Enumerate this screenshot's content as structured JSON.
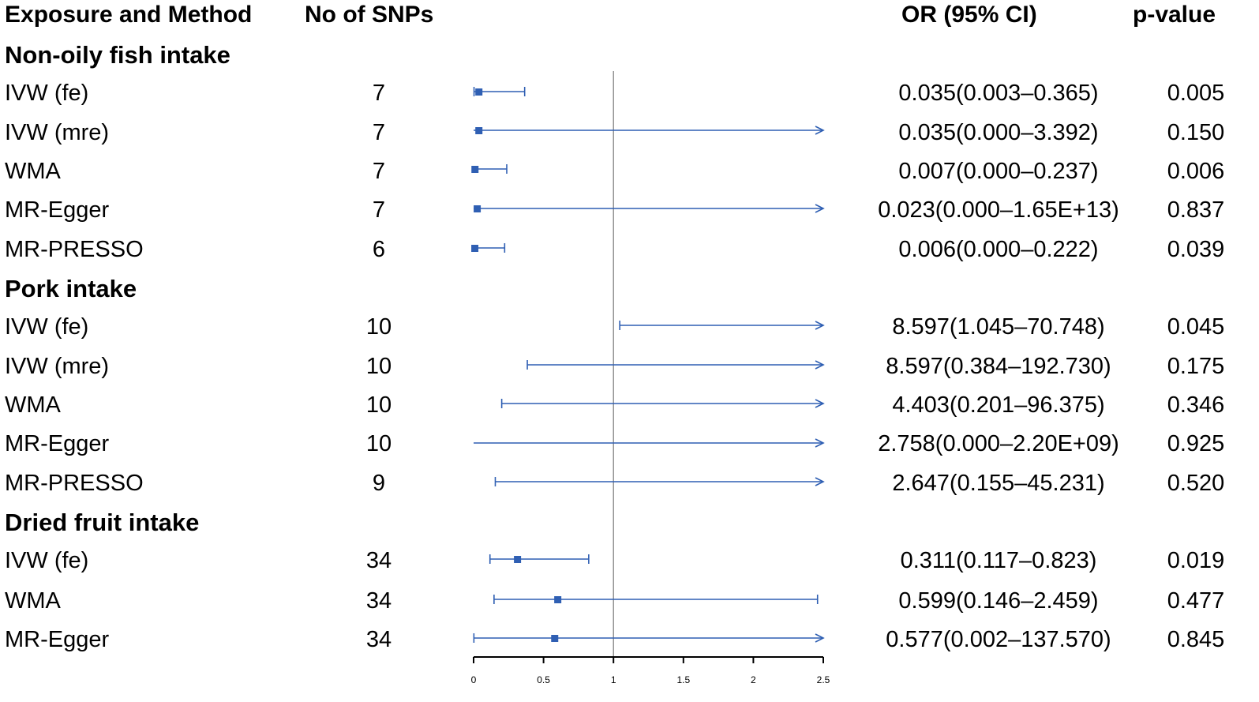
{
  "headers": {
    "exposure": "Exposure and Method",
    "snps": "No of SNPs",
    "or": "OR (95% CI)",
    "pvalue": "p-value"
  },
  "groups": [
    {
      "name": "Non-oily fish intake",
      "rows": [
        {
          "method": "IVW (fe)",
          "snps": "7",
          "or_ci": "0.035(0.003–0.365)",
          "p": "0.005"
        },
        {
          "method": "IVW (mre)",
          "snps": "7",
          "or_ci": "0.035(0.000–3.392)",
          "p": "0.150"
        },
        {
          "method": "WMA",
          "snps": "7",
          "or_ci": "0.007(0.000–0.237)",
          "p": "0.006"
        },
        {
          "method": "MR-Egger",
          "snps": "7",
          "or_ci": "0.023(0.000–1.65E+13)",
          "p": "0.837"
        },
        {
          "method": "MR-PRESSO",
          "snps": "6",
          "or_ci": "0.006(0.000–0.222)",
          "p": "0.039"
        }
      ]
    },
    {
      "name": "Pork intake",
      "rows": [
        {
          "method": "IVW (fe)",
          "snps": "10",
          "or_ci": "8.597(1.045–70.748)",
          "p": "0.045"
        },
        {
          "method": "IVW (mre)",
          "snps": "10",
          "or_ci": "8.597(0.384–192.730)",
          "p": "0.175"
        },
        {
          "method": "WMA",
          "snps": "10",
          "or_ci": "4.403(0.201–96.375)",
          "p": "0.346"
        },
        {
          "method": "MR-Egger",
          "snps": "10",
          "or_ci": "2.758(0.000–2.20E+09)",
          "p": "0.925"
        },
        {
          "method": "MR-PRESSO",
          "snps": "9",
          "or_ci": "2.647(0.155–45.231)",
          "p": "0.520"
        }
      ]
    },
    {
      "name": "Dried fruit intake",
      "rows": [
        {
          "method": "IVW (fe)",
          "snps": "34",
          "or_ci": "0.311(0.117–0.823)",
          "p": "0.019"
        },
        {
          "method": "WMA",
          "snps": "34",
          "or_ci": "0.599(0.146–2.459)",
          "p": "0.477"
        },
        {
          "method": "MR-Egger",
          "snps": "34",
          "or_ci": "0.577(0.002–137.570)",
          "p": "0.845"
        }
      ]
    }
  ],
  "chart_data": {
    "type": "forest",
    "title": "",
    "xlabel": "",
    "ylabel": "",
    "xlim": [
      0,
      2.5
    ],
    "x_ticks": [
      "0",
      "0.5",
      "1",
      "1.5",
      "2",
      "2.5"
    ],
    "reference_line": 1,
    "series": [
      {
        "group": "Non-oily fish intake",
        "method": "IVW (fe)",
        "or": 0.035,
        "lower": 0.003,
        "upper": 0.365
      },
      {
        "group": "Non-oily fish intake",
        "method": "IVW (mre)",
        "or": 0.035,
        "lower": 0.0,
        "upper": 3.392
      },
      {
        "group": "Non-oily fish intake",
        "method": "WMA",
        "or": 0.007,
        "lower": 0.0,
        "upper": 0.237
      },
      {
        "group": "Non-oily fish intake",
        "method": "MR-Egger",
        "or": 0.023,
        "lower": 0.0,
        "upper": 16500000000000.0
      },
      {
        "group": "Non-oily fish intake",
        "method": "MR-PRESSO",
        "or": 0.006,
        "lower": 0.0,
        "upper": 0.222
      },
      {
        "group": "Pork intake",
        "method": "IVW (fe)",
        "or": 8.597,
        "lower": 1.045,
        "upper": 70.748
      },
      {
        "group": "Pork intake",
        "method": "IVW (mre)",
        "or": 8.597,
        "lower": 0.384,
        "upper": 192.73
      },
      {
        "group": "Pork intake",
        "method": "WMA",
        "or": 4.403,
        "lower": 0.201,
        "upper": 96.375
      },
      {
        "group": "Pork intake",
        "method": "MR-Egger",
        "or": 2.758,
        "lower": 0.0,
        "upper": 2200000000.0
      },
      {
        "group": "Pork intake",
        "method": "MR-PRESSO",
        "or": 2.647,
        "lower": 0.155,
        "upper": 45.231
      },
      {
        "group": "Dried fruit intake",
        "method": "IVW (fe)",
        "or": 0.311,
        "lower": 0.117,
        "upper": 0.823
      },
      {
        "group": "Dried fruit intake",
        "method": "WMA",
        "or": 0.599,
        "lower": 0.146,
        "upper": 2.459
      },
      {
        "group": "Dried fruit intake",
        "method": "MR-Egger",
        "or": 0.577,
        "lower": 0.002,
        "upper": 137.57
      }
    ],
    "colors": {
      "estimate": "#2f5fb3",
      "reference": "#808080",
      "axis": "#000000"
    }
  }
}
